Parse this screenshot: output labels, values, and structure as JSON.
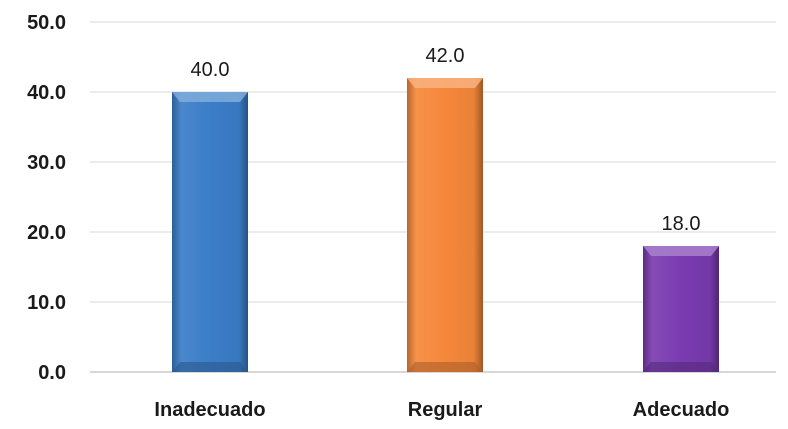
{
  "chart_data": {
    "type": "bar",
    "categories": [
      "Inadecuado",
      "Regular",
      "Adecuado"
    ],
    "values": [
      40.0,
      42.0,
      18.0
    ],
    "data_labels": [
      "40.0",
      "42.0",
      "18.0"
    ],
    "colors": [
      "#3b7dc8",
      "#f5883a",
      "#7a3bb0"
    ],
    "yticks": [
      "0.0",
      "10.0",
      "20.0",
      "30.0",
      "40.0",
      "50.0"
    ],
    "ylim": [
      0,
      50
    ],
    "grid": true,
    "legend": "none"
  }
}
